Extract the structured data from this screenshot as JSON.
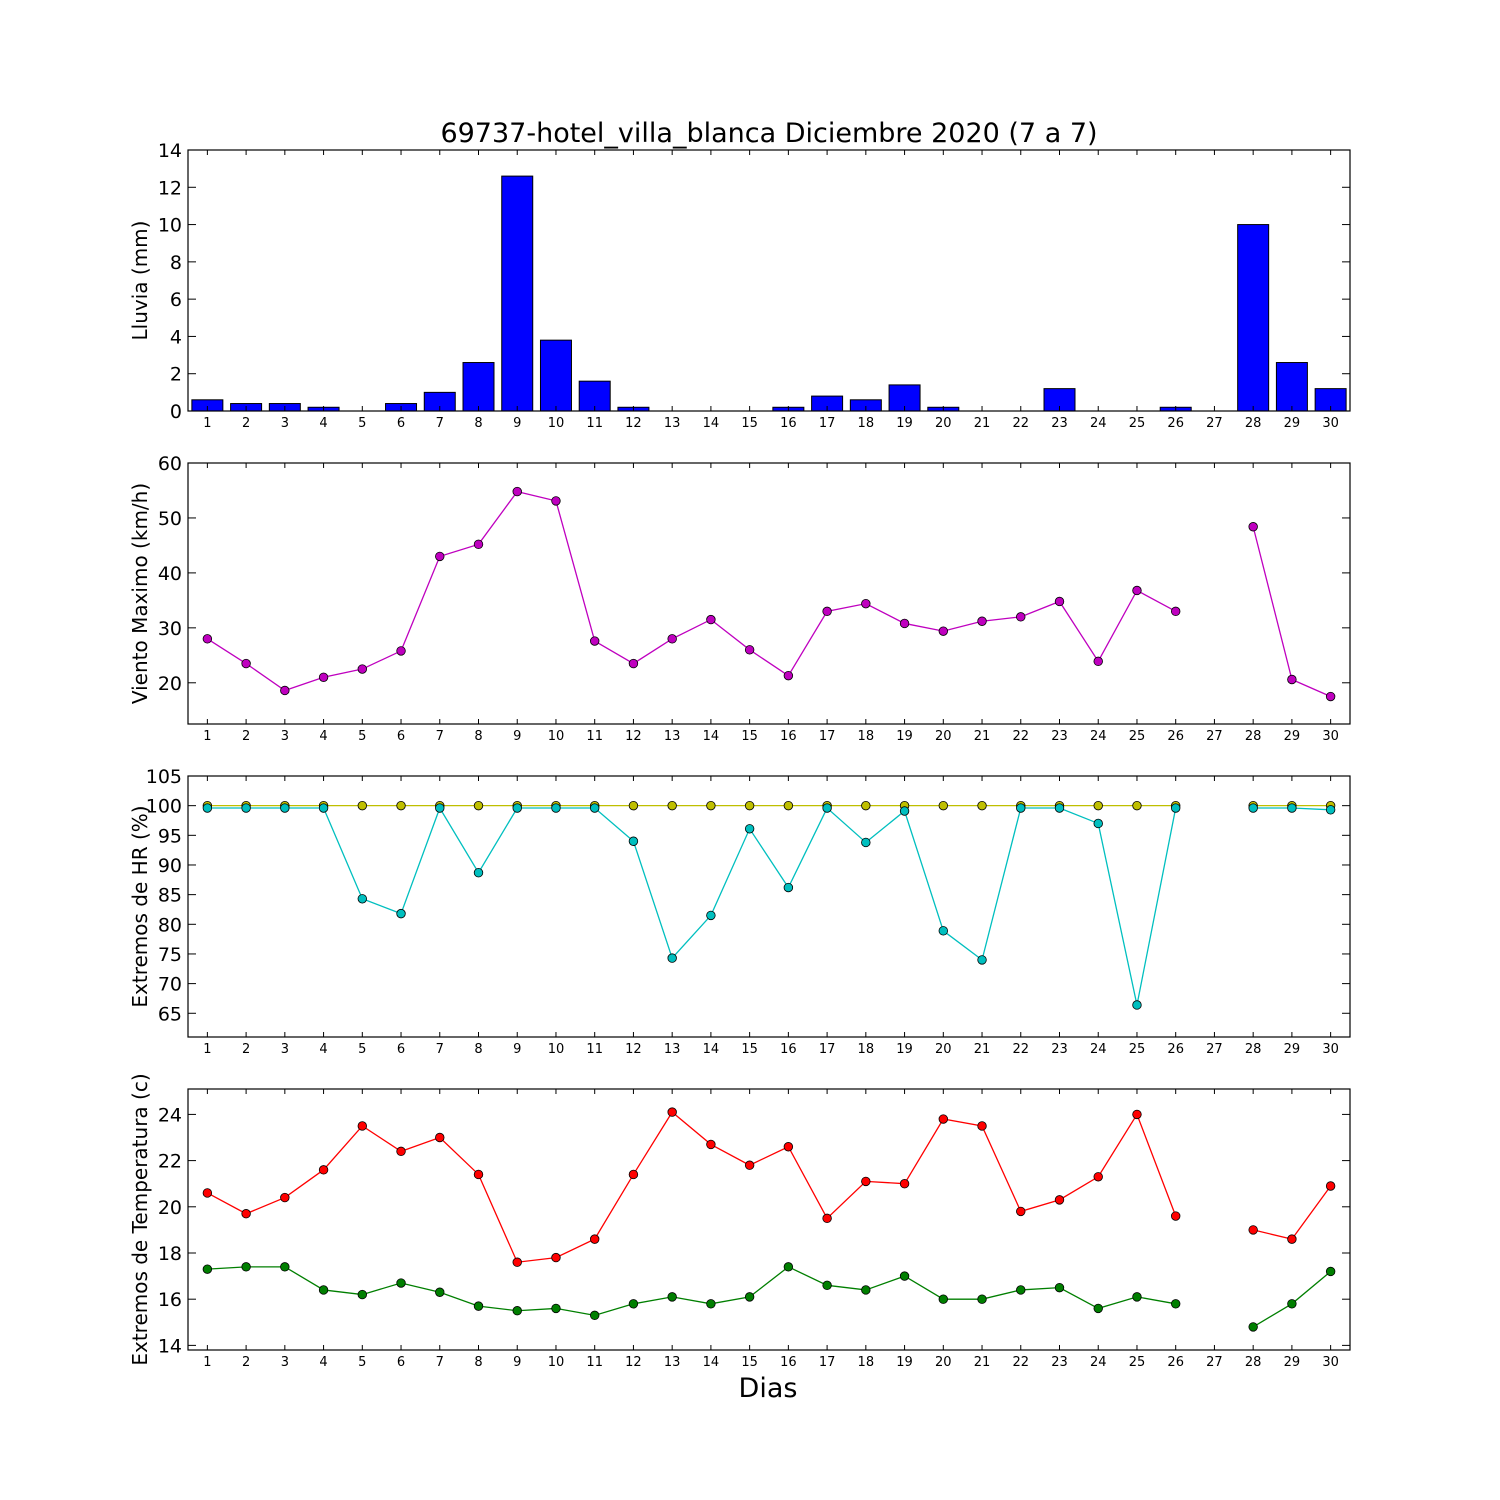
{
  "title": "69737-hotel_villa_blanca Diciembre 2020  (7 a 7)",
  "xlabel": "Dias",
  "chart_data": [
    {
      "type": "bar",
      "ylabel": "Lluvia (mm)",
      "ylim": [
        0,
        14
      ],
      "yticks": [
        0,
        2,
        4,
        6,
        8,
        10,
        12,
        14
      ],
      "categories": [
        1,
        2,
        3,
        4,
        5,
        6,
        7,
        8,
        9,
        10,
        11,
        12,
        13,
        14,
        15,
        16,
        17,
        18,
        19,
        20,
        21,
        22,
        23,
        24,
        25,
        26,
        27,
        28,
        29,
        30
      ],
      "values": [
        0.6,
        0.4,
        0.4,
        0.2,
        0.0,
        0.4,
        1.0,
        2.6,
        12.6,
        3.8,
        1.6,
        0.2,
        0.0,
        0.0,
        0.0,
        0.2,
        0.8,
        0.6,
        1.4,
        0.2,
        0.0,
        0.0,
        1.2,
        0.0,
        0.0,
        0.2,
        null,
        10.0,
        2.6,
        1.2
      ],
      "color": "#0000ff"
    },
    {
      "type": "line",
      "ylabel": "Viento Maximo (km/h)",
      "ylim": [
        12.5,
        60
      ],
      "yticks": [
        20,
        30,
        40,
        50,
        60
      ],
      "x": [
        1,
        2,
        3,
        4,
        5,
        6,
        7,
        8,
        9,
        10,
        11,
        12,
        13,
        14,
        15,
        16,
        17,
        18,
        19,
        20,
        21,
        22,
        23,
        24,
        25,
        26,
        27,
        28,
        29,
        30
      ],
      "series": [
        {
          "color": "#bf00bf",
          "values": [
            28.0,
            23.5,
            18.6,
            21.0,
            22.5,
            25.8,
            43.0,
            45.2,
            54.8,
            53.1,
            27.6,
            23.5,
            28.0,
            31.5,
            26.0,
            21.3,
            33.0,
            34.4,
            30.8,
            29.4,
            31.2,
            32.0,
            34.8,
            23.9,
            36.8,
            33.0,
            null,
            48.4,
            20.6,
            17.5
          ]
        }
      ]
    },
    {
      "type": "line",
      "ylabel": "Extremos de HR (%)",
      "ylim": [
        61,
        105
      ],
      "yticks": [
        65,
        70,
        75,
        80,
        85,
        90,
        95,
        100,
        105
      ],
      "x": [
        1,
        2,
        3,
        4,
        5,
        6,
        7,
        8,
        9,
        10,
        11,
        12,
        13,
        14,
        15,
        16,
        17,
        18,
        19,
        20,
        21,
        22,
        23,
        24,
        25,
        26,
        27,
        28,
        29,
        30
      ],
      "series": [
        {
          "color": "#bfbf00",
          "values": [
            100,
            100,
            100,
            100,
            100,
            100,
            100,
            100,
            100,
            100,
            100,
            100,
            100,
            100,
            100,
            100,
            100,
            100,
            100,
            100,
            100,
            100,
            100,
            100,
            100,
            100,
            null,
            100,
            100,
            100
          ]
        },
        {
          "color": "#00bfbf",
          "values": [
            99.6,
            99.6,
            99.6,
            99.6,
            84.3,
            81.8,
            99.6,
            88.7,
            99.6,
            99.6,
            99.6,
            94.0,
            74.3,
            81.5,
            96.1,
            86.2,
            99.6,
            93.8,
            99.1,
            78.9,
            74.0,
            99.6,
            99.6,
            97.0,
            66.4,
            99.6,
            null,
            99.6,
            99.6,
            99.3
          ]
        }
      ]
    },
    {
      "type": "line",
      "ylabel": "Extremos de Temperatura (c)",
      "ylim": [
        13.8,
        25.1
      ],
      "yticks": [
        14,
        16,
        18,
        20,
        22,
        24
      ],
      "x": [
        1,
        2,
        3,
        4,
        5,
        6,
        7,
        8,
        9,
        10,
        11,
        12,
        13,
        14,
        15,
        16,
        17,
        18,
        19,
        20,
        21,
        22,
        23,
        24,
        25,
        26,
        27,
        28,
        29,
        30
      ],
      "series": [
        {
          "color": "#ff0000",
          "values": [
            20.6,
            19.7,
            20.4,
            21.6,
            23.5,
            22.4,
            23.0,
            21.4,
            17.6,
            17.8,
            18.6,
            21.4,
            24.1,
            22.7,
            21.8,
            22.6,
            19.5,
            21.1,
            21.0,
            23.8,
            23.5,
            19.8,
            20.3,
            21.3,
            24.0,
            19.6,
            null,
            19.0,
            18.6,
            20.9
          ]
        },
        {
          "color": "#007f00",
          "values": [
            17.3,
            17.4,
            17.4,
            16.4,
            16.2,
            16.7,
            16.3,
            15.7,
            15.5,
            15.6,
            15.3,
            15.8,
            16.1,
            15.8,
            16.1,
            17.4,
            16.6,
            16.4,
            17.0,
            16.0,
            16.0,
            16.4,
            16.5,
            15.6,
            16.1,
            15.8,
            null,
            14.8,
            15.8,
            17.2
          ]
        }
      ]
    }
  ]
}
